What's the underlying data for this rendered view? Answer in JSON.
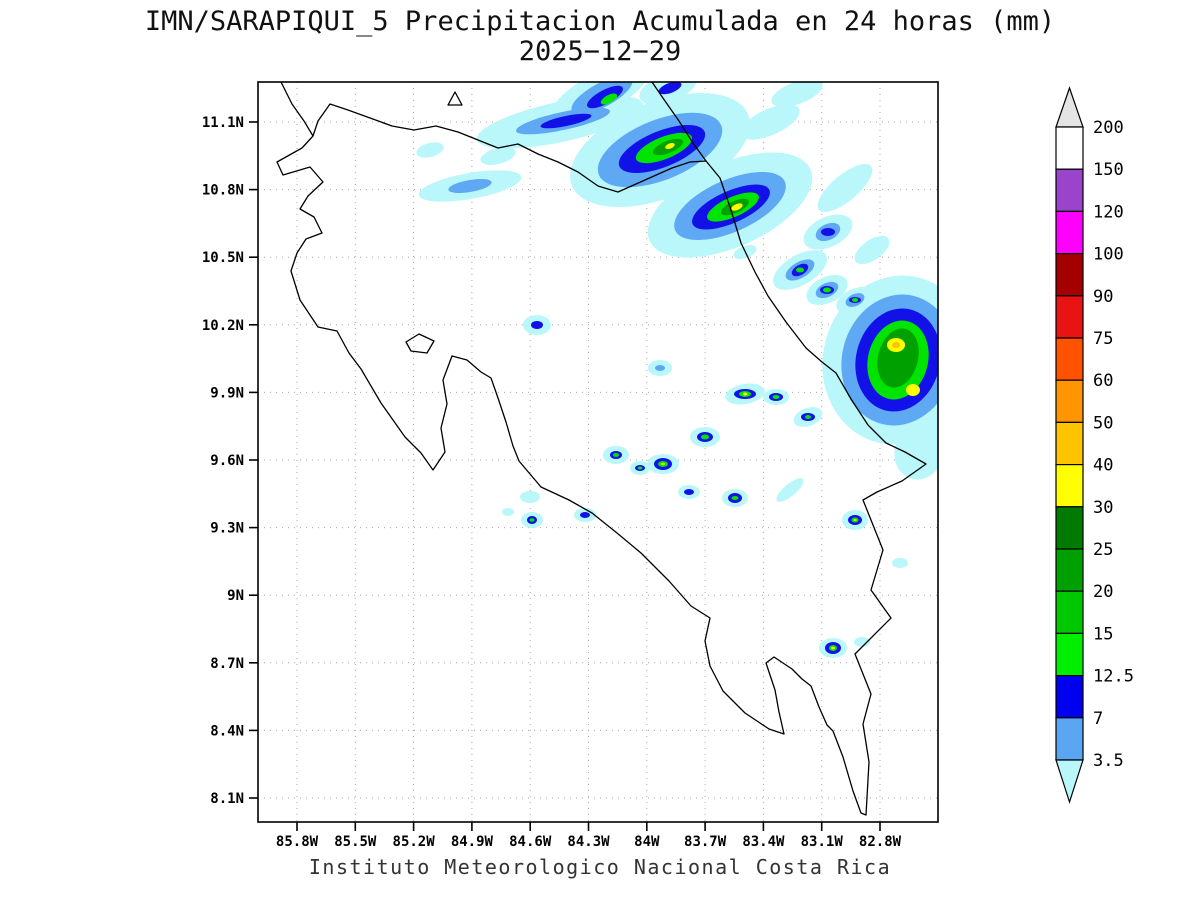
{
  "header": {
    "title": "IMN/SARAPIQUI_5 Precipitacion Acumulada en 24 horas (mm)",
    "date": "2025−12−29"
  },
  "footer": {
    "credit": "Instituto Meteorologico Nacional Costa Rica"
  },
  "axes": {
    "lat_ticks": [
      "11.1N",
      "10.8N",
      "10.5N",
      "10.2N",
      "9.9N",
      "9.6N",
      "9.3N",
      "9N",
      "8.7N",
      "8.4N",
      "8.1N"
    ],
    "lon_ticks": [
      "85.8W",
      "85.5W",
      "85.2W",
      "84.9W",
      "84.6W",
      "84.3W",
      "84W",
      "83.7W",
      "83.4W",
      "83.1W",
      "82.8W"
    ]
  },
  "colorbar": {
    "units": "mm",
    "boundary_labels": [
      "200",
      "150",
      "120",
      "100",
      "90",
      "75",
      "60",
      "50",
      "40",
      "30",
      "25",
      "20",
      "15",
      "12.5",
      "7",
      "3.5"
    ],
    "segment_colors_top_to_bottom": [
      "#ffffff",
      "#9a44cc",
      "#ff00ff",
      "#a40000",
      "#e81414",
      "#ff5200",
      "#ff9500",
      "#ffc400",
      "#ffff00",
      "#007a00",
      "#00a000",
      "#00c800",
      "#00ee00",
      "#0000f0",
      "#5aa6f2"
    ],
    "arrow_top_color": "#e4e4e4",
    "arrow_bottom_color": "#b9f7fb"
  }
}
